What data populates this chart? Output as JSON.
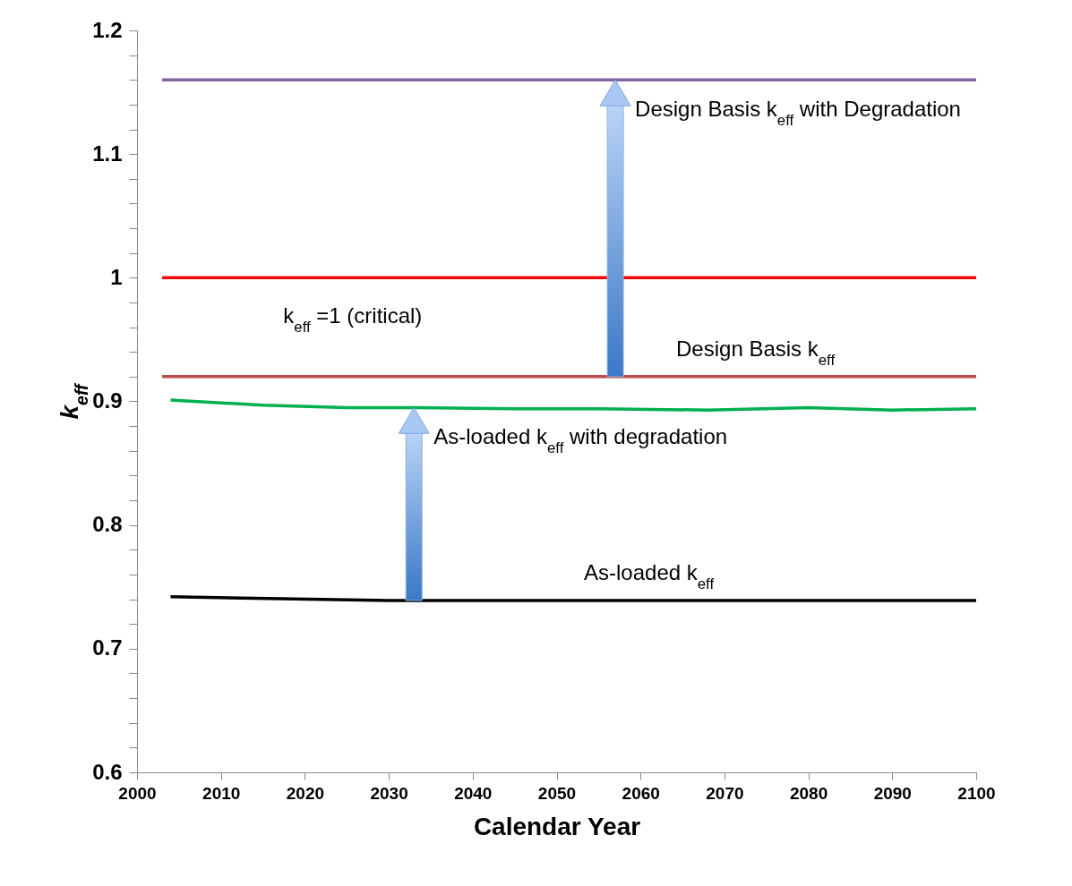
{
  "chart_data": {
    "type": "line",
    "xlabel": "Calendar Year",
    "ylabel": "k$_{eff}$",
    "xlim": [
      2000,
      2100
    ],
    "xticks": [
      2000,
      2010,
      2020,
      2030,
      2040,
      2050,
      2060,
      2070,
      2080,
      2090,
      2100
    ],
    "ylim": [
      0.6,
      1.2
    ],
    "yticks": [
      0.6,
      {
        "value": 0.62,
        "label": null
      },
      {
        "value": 0.64,
        "label": null
      },
      {
        "value": 0.66,
        "label": null
      },
      {
        "value": 0.68,
        "label": null
      },
      0.7,
      {
        "value": 0.72,
        "label": null
      },
      {
        "value": 0.74,
        "label": null
      },
      {
        "value": 0.76,
        "label": null
      },
      {
        "value": 0.78,
        "label": null
      },
      0.8,
      {
        "value": 0.82,
        "label": null
      },
      {
        "value": 0.84,
        "label": null
      },
      {
        "value": 0.86,
        "label": null
      },
      {
        "value": 0.88,
        "label": null
      },
      0.9,
      {
        "value": 0.92,
        "label": null
      },
      {
        "value": 0.94,
        "label": null
      },
      {
        "value": 0.96,
        "label": null
      },
      {
        "value": 0.98,
        "label": null
      },
      1,
      {
        "value": 1.02,
        "label": null
      },
      {
        "value": 1.04,
        "label": null
      },
      {
        "value": 1.06,
        "label": null
      },
      {
        "value": 1.08,
        "label": null
      },
      1.1,
      {
        "value": 1.12,
        "label": null
      },
      {
        "value": 1.14,
        "label": null
      },
      {
        "value": 1.16,
        "label": null
      },
      {
        "value": 1.18,
        "label": null
      },
      1.2
    ],
    "grid": false,
    "legend": false,
    "series": [
      {
        "color": "#ff0000",
        "x": [
          2003,
          2100
        ],
        "values": [
          1.0,
          1.0
        ]
      },
      {
        "color": "#7f63a2",
        "x": [
          2003,
          2057,
          2100
        ],
        "values": [
          1.16,
          1.16,
          1.16
        ]
      },
      {
        "color": "#be4b48",
        "x": [
          2003,
          2100
        ],
        "values": [
          0.92,
          0.92
        ]
      },
      {
        "color": "#00b050",
        "x": [
          2004,
          2015,
          2025,
          2033,
          2045,
          2055,
          2068,
          2080,
          2090,
          2100
        ],
        "values": [
          0.901,
          0.897,
          0.895,
          0.895,
          0.894,
          0.894,
          0.893,
          0.895,
          0.893,
          0.894
        ]
      },
      {
        "color": "#000000",
        "x": [
          2004,
          2030,
          2050,
          2100
        ],
        "values": [
          0.742,
          0.739,
          0.739,
          0.739
        ]
      }
    ],
    "annotations": [
      {
        "text": "Design Basis k$_{eff}$ with Degradation",
        "x": 2057,
        "y": 1.16
      },
      {
        "text": "k$_{eff}$ =1 (critical)",
        "x": 2025.7,
        "y": 1.0
      },
      {
        "text": "Design Basis k$_{eff}$",
        "x": 2073.7,
        "y": 0.92
      },
      {
        "text": "As-loaded k$_{eff}$ with degradation",
        "x": 2033,
        "y": 0.895
      },
      {
        "text": "As-loaded k$_{eff}$",
        "x": 2061,
        "y": 0.739
      }
    ]
  }
}
